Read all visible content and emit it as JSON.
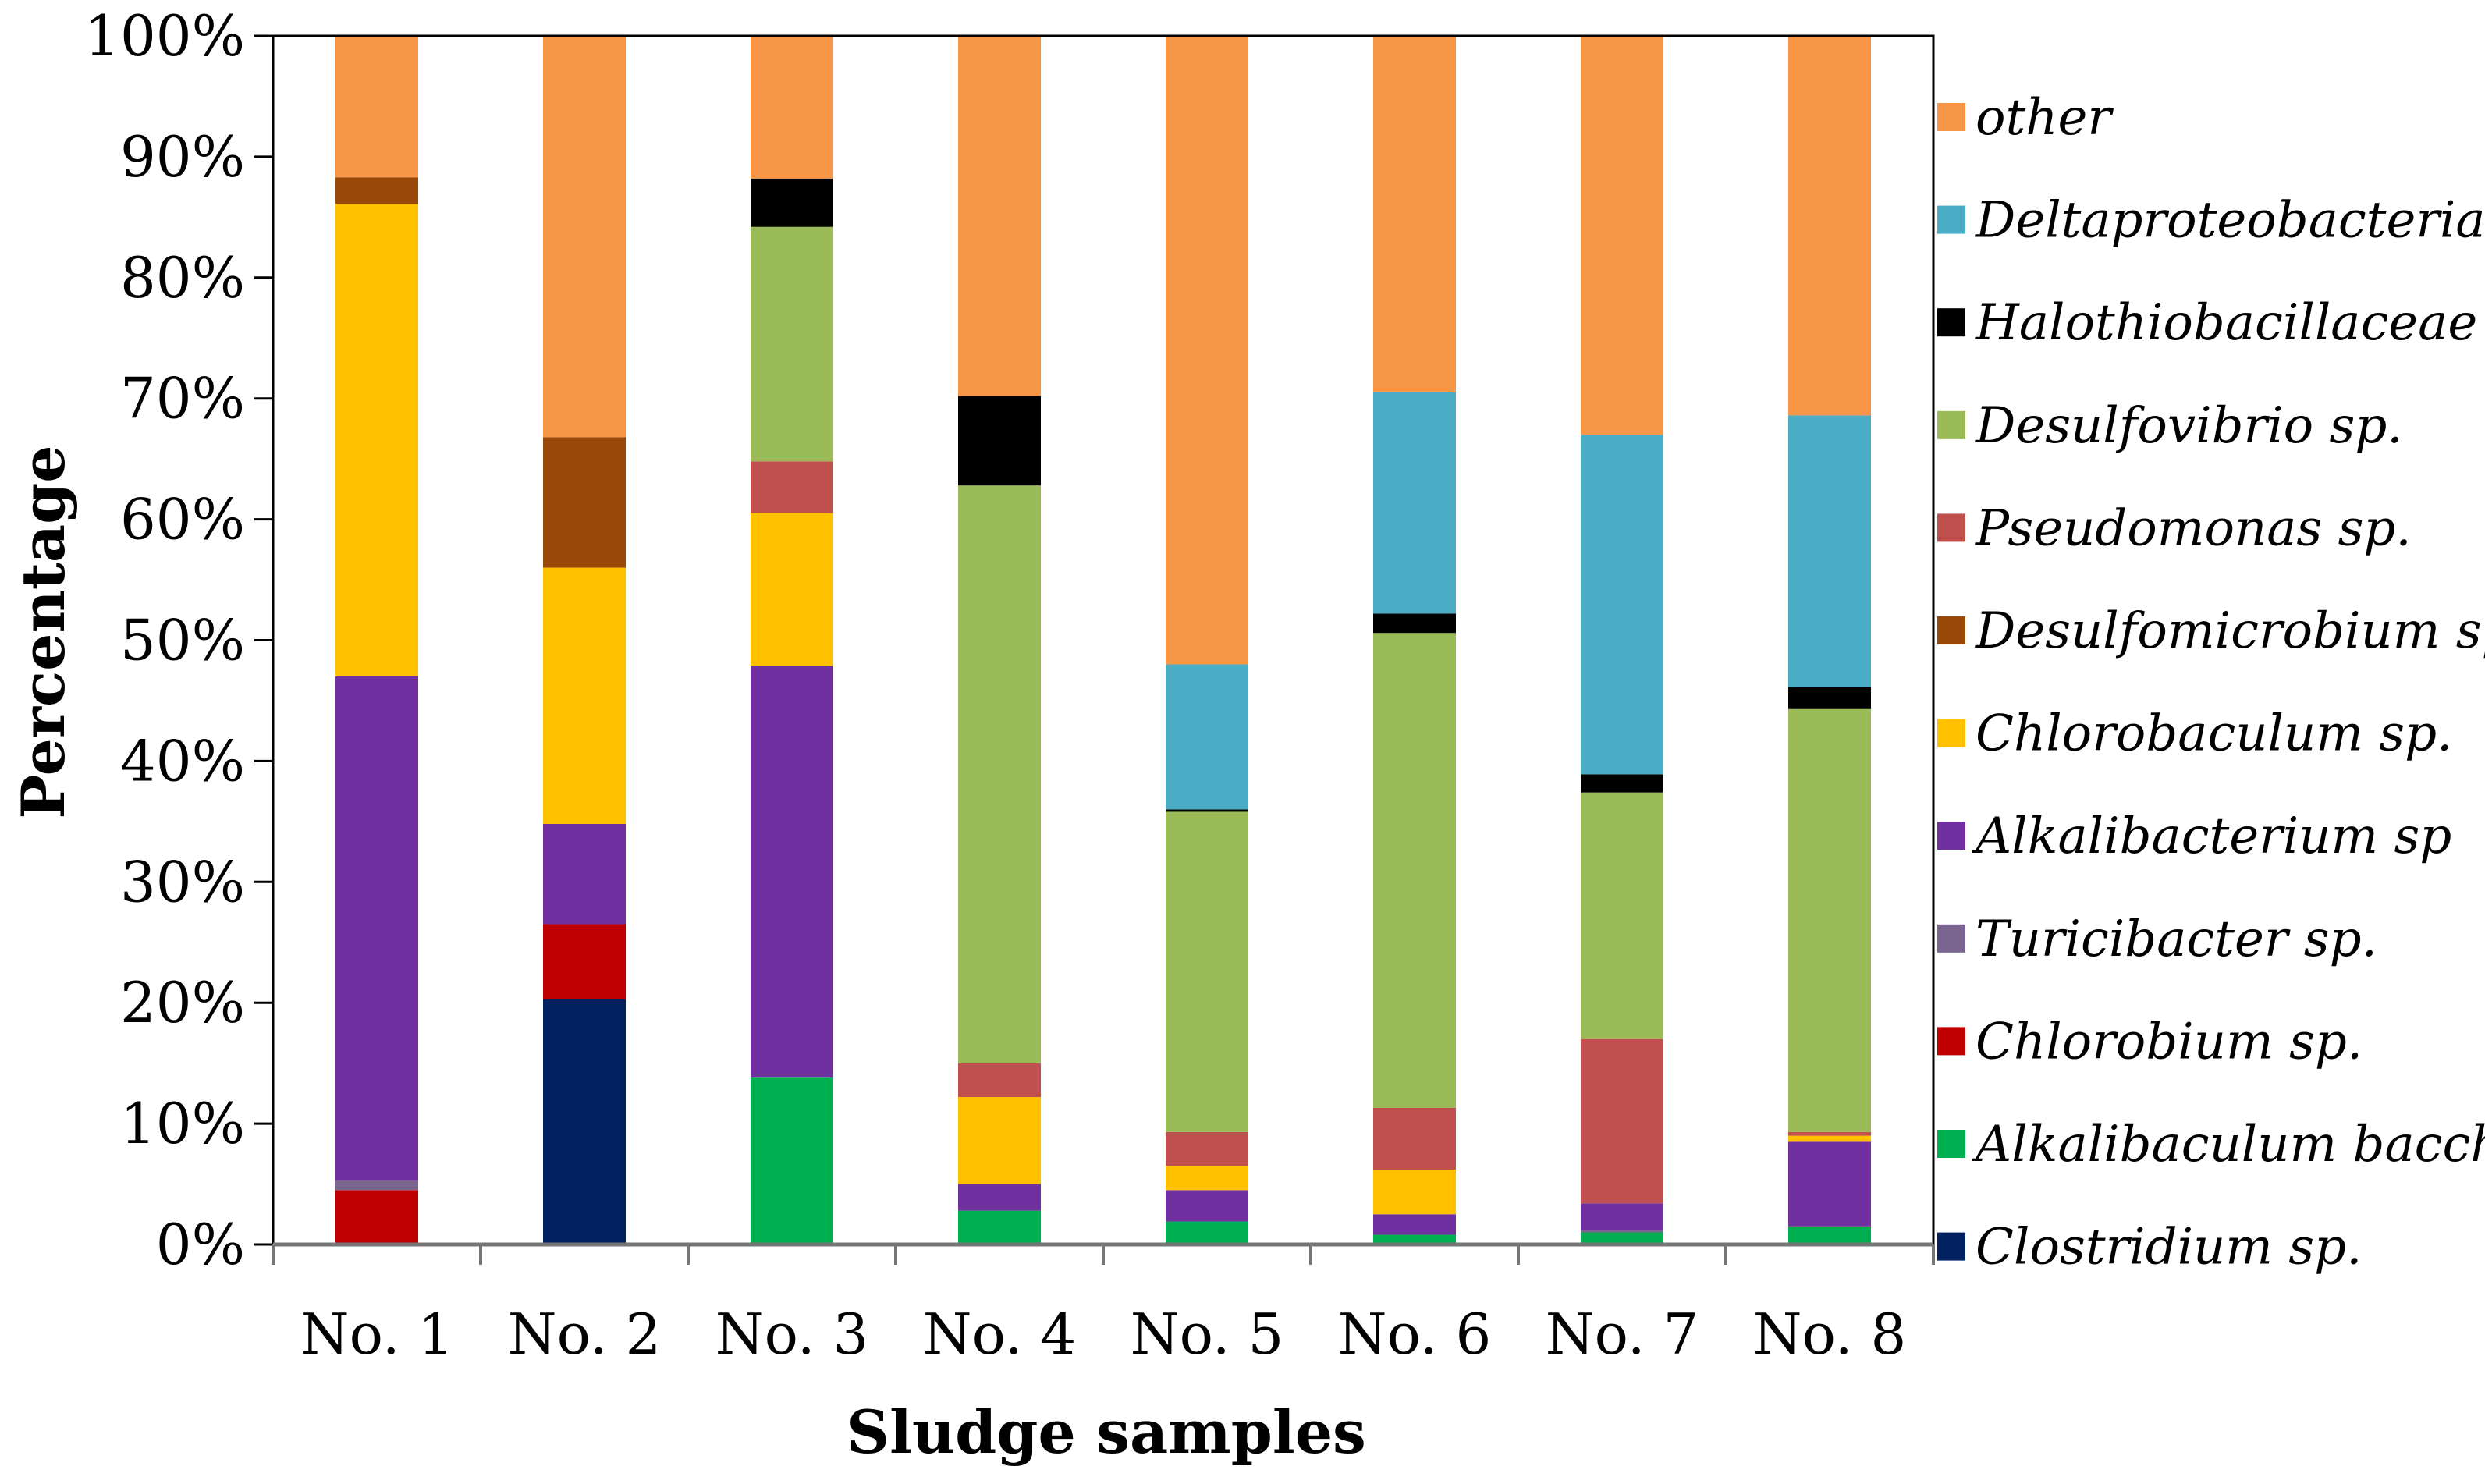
{
  "chart_data": {
    "type": "bar",
    "stacked": true,
    "title": "",
    "xlabel": "Sludge samples",
    "ylabel": "Percentage",
    "ylim": [
      0,
      100
    ],
    "yticks": [
      "0%",
      "10%",
      "20%",
      "30%",
      "40%",
      "50%",
      "60%",
      "70%",
      "80%",
      "90%",
      "100%"
    ],
    "grid": false,
    "legend_position": "right",
    "categories": [
      "No. 1",
      "No. 2",
      "No. 3",
      "No. 4",
      "No. 5",
      "No. 6",
      "No. 7",
      "No. 8"
    ],
    "series": [
      {
        "name": "Clostridium sp.",
        "color": "#002060",
        "values": [
          0,
          20.3,
          0,
          0,
          0,
          0,
          0,
          0
        ]
      },
      {
        "name": "Alkalibaculum bacchi",
        "color": "#00B050",
        "values": [
          0,
          0,
          13.8,
          2.8,
          1.9,
          0.8,
          1.0,
          1.5
        ]
      },
      {
        "name": "Chlorobium sp.",
        "color": "#C00000",
        "values": [
          4.5,
          6.2,
          0,
          0,
          0,
          0,
          0,
          0
        ]
      },
      {
        "name": "Turicibacter sp.",
        "color": "#7A6590",
        "values": [
          0.8,
          0,
          0,
          0,
          0,
          0,
          0.2,
          0
        ]
      },
      {
        "name": "Alkalibacterium sp",
        "color": "#7030A0",
        "values": [
          41.7,
          8.3,
          34.1,
          2.2,
          2.6,
          1.7,
          2.2,
          7.0
        ]
      },
      {
        "name": "Chlorobaculum sp.",
        "color": "#FFC000",
        "values": [
          39.1,
          21.2,
          12.6,
          7.2,
          2.0,
          3.7,
          0,
          0.5
        ]
      },
      {
        "name": "Desulfomicrobium sp.",
        "color": "#984807",
        "values": [
          2.2,
          10.8,
          0,
          0,
          0,
          0,
          0,
          0
        ]
      },
      {
        "name": "Pseudomonas sp.",
        "color": "#C0504D",
        "values": [
          0,
          0,
          4.3,
          2.8,
          2.8,
          5.1,
          13.6,
          0.3
        ]
      },
      {
        "name": "Desulfovibrio sp.",
        "color": "#9BBB59",
        "values": [
          0,
          0,
          19.4,
          47.8,
          26.5,
          39.3,
          20.4,
          35.0
        ]
      },
      {
        "name": "Halothiobacillaceae",
        "color": "#000000",
        "values": [
          0,
          0,
          4.0,
          7.4,
          0.2,
          1.6,
          1.5,
          1.8
        ]
      },
      {
        "name": "Deltaproteobacteria",
        "color": "#4BACC6",
        "values": [
          0,
          0,
          0,
          0,
          12.0,
          18.3,
          28.1,
          22.5
        ]
      },
      {
        "name": "other",
        "color": "#F79646",
        "values": [
          11.7,
          33.2,
          11.8,
          29.8,
          52.0,
          29.5,
          33.0,
          31.4
        ]
      }
    ]
  }
}
